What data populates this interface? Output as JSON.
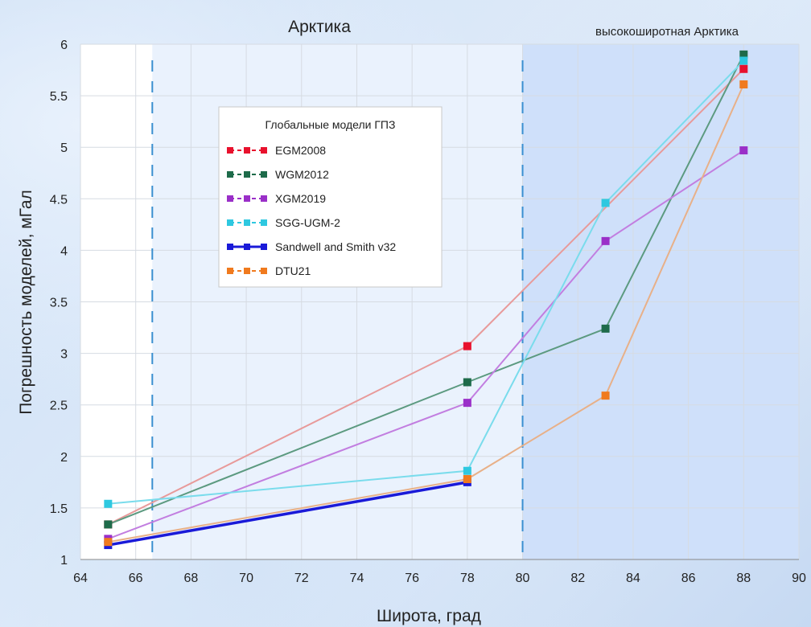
{
  "chart_data": {
    "type": "line",
    "title": "",
    "xlabel": "Широта, град",
    "ylabel": "Погрешность моделей, мГал",
    "xlim": [
      64,
      90
    ],
    "ylim": [
      1,
      6
    ],
    "xticks": [
      64,
      66,
      68,
      70,
      72,
      74,
      76,
      78,
      80,
      82,
      84,
      86,
      88,
      90
    ],
    "yticks": [
      1,
      1.5,
      2,
      2.5,
      3,
      3.5,
      4,
      4.5,
      5,
      5.5,
      6
    ],
    "ytick_labels": [
      "1",
      "1.5",
      "2",
      "2.5",
      "3",
      "3.5",
      "4",
      "4.5",
      "5",
      "5.5",
      "6"
    ],
    "grid": true,
    "regions": [
      {
        "label": "Арктика",
        "from": 66.6,
        "to": 80,
        "fill": "#eaf2fd"
      },
      {
        "label": "высокоширотная Арктика",
        "from": 80,
        "to": 90,
        "fill": "#cfe0fa"
      }
    ],
    "vlines": [
      66.6,
      80
    ],
    "legend": {
      "title": "Глобальные модели ГПЗ",
      "position": "upper-left"
    },
    "series": [
      {
        "name": "EGM2008",
        "color": "#e8112d",
        "line_color": "#e89a9a",
        "x": [
          65,
          78,
          88
        ],
        "y": [
          1.34,
          3.07,
          5.76
        ]
      },
      {
        "name": "WGM2012",
        "color": "#1e6b4a",
        "line_color": "#5c9a80",
        "x": [
          65,
          78,
          83,
          88
        ],
        "y": [
          1.34,
          2.72,
          3.24,
          5.9
        ]
      },
      {
        "name": "XGM2019",
        "color": "#9a2fc8",
        "line_color": "#c27ee0",
        "x": [
          65,
          78,
          83,
          88
        ],
        "y": [
          1.2,
          2.52,
          4.09,
          4.97
        ]
      },
      {
        "name": "SGG-UGM-2",
        "color": "#2ec8e0",
        "line_color": "#7adcec",
        "x": [
          65,
          78,
          83,
          88
        ],
        "y": [
          1.54,
          1.86,
          4.46,
          5.84
        ]
      },
      {
        "name": "Sandwell and Smith v32",
        "color": "#1a1ad8",
        "line_color": "#1a1ad8",
        "x": [
          65,
          78
        ],
        "y": [
          1.14,
          1.75
        ]
      },
      {
        "name": "DTU21",
        "color": "#f07a1e",
        "line_color": "#e8b088",
        "x": [
          65,
          78,
          83,
          88
        ],
        "y": [
          1.17,
          1.78,
          2.59,
          5.61
        ]
      }
    ]
  }
}
